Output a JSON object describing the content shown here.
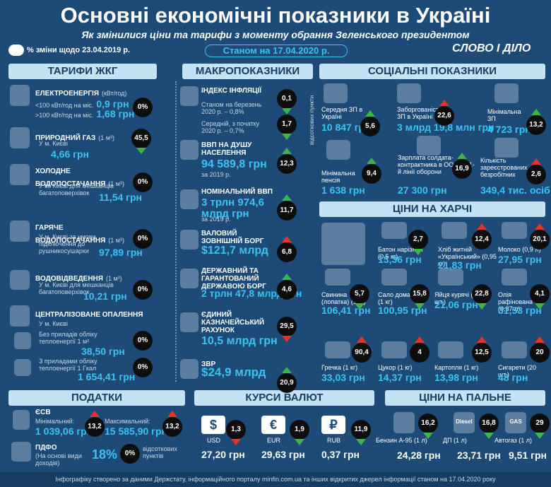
{
  "header": {
    "title": "Основні економічні показники в Україні",
    "subtitle": "Як змінилися ціни та тарифи з моменту обрання Зеленського президентом",
    "legend_note": "% зміни щодо 23.04.2019 р.",
    "date": "Станом на 17.04.2020 р.",
    "logo": "СЛОВО І ДІЛО"
  },
  "tariffs": {
    "title": "ТАРИФИ ЖКГ",
    "items": [
      {
        "name": "ЕЛЕКТРОЕНЕРГІЯ",
        "unit": "(кВт/год)",
        "rows": [
          {
            "label": "<100 кВт/год на міс.",
            "value": "0,9 грн"
          },
          {
            "label": ">100 кВт/год на міс.",
            "value": "1,68 грн"
          }
        ],
        "change": {
          "value": "0%"
        }
      },
      {
        "name": "ПРИРОДНИЙ ГАЗ",
        "unit": "(1 м³)",
        "note": "У м. Києві",
        "value": "4,66 грн",
        "change": {
          "value": "45,5",
          "dir": "down",
          "color": "#3db34a"
        }
      },
      {
        "name": "ХОЛОДНЕ ВОДОПОСТАЧАННЯ",
        "unit": "(1 м³)",
        "note": "У м. Києві для мешканців багатоповерхівок",
        "value": "11,54 грн",
        "change": {
          "value": "0%"
        }
      },
      {
        "name": "ГАРЯЧЕ ВОДОПОСТАЧАННЯ",
        "unit": "(1 м³)",
        "note": "У м. Києві за умови підключення до рушникосушарки",
        "value": "97,89 грн",
        "change": {
          "value": "0%"
        }
      },
      {
        "name": "ВОДОВІДВЕДЕННЯ",
        "unit": "(1 м³)",
        "note": "У м. Києві для мешканців багатоповерхівок",
        "value": "10,21 грн",
        "change": {
          "value": "0%"
        }
      },
      {
        "name": "ЦЕНТРАЛІЗОВАНЕ ОПАЛЕННЯ",
        "note": "У м. Києві",
        "rows": [
          {
            "label": "Без приладів обліку теплоенергії 1 м²",
            "value": "38,50 грн",
            "change": {
              "value": "0%"
            }
          },
          {
            "label": "З приладами обліку теплоенергії 1 Гкал",
            "value": "1 654,41 грн",
            "change": {
              "value": "0%"
            }
          }
        ]
      }
    ]
  },
  "macro": {
    "title": "МАКРОПОКАЗНИКИ",
    "side_note": "відсоткових пункти",
    "items": [
      {
        "name": "ІНДЕКС ІНФЛЯЦІЇ",
        "rows": [
          {
            "label": "Станом на березень 2020 р. – 0,8%",
            "change": {
              "value": "0,1",
              "dir": "down",
              "color": "#3db34a"
            }
          },
          {
            "label": "Середній, з початку 2020 р. – 0,7%",
            "change": {
              "value": "1,7",
              "dir": "down",
              "color": "#3db34a"
            }
          }
        ]
      },
      {
        "name": "ВВП НА ДУШУ НАСЕЛЕННЯ",
        "value": "94 589,8 грн",
        "note": "за 2019 р.",
        "change": {
          "value": "12,3",
          "dir": "up",
          "color": "#3db34a"
        }
      },
      {
        "name": "НОМІНАЛЬНИЙ ВВП",
        "value": "3 трлн 974,6 млрд грн",
        "note": "за 2019 р.",
        "change": {
          "value": "11,7",
          "dir": "up",
          "color": "#3db34a"
        }
      },
      {
        "name": "ВАЛОВИЙ ЗОВНІШНІЙ БОРГ",
        "value": "$121,7 млрд",
        "change": {
          "value": "6,8",
          "dir": "up",
          "color": "#e5332a"
        }
      },
      {
        "name": "ДЕРЖАВНИЙ ТА ГАРАНТОВАНИЙ ДЕРЖАВОЮ БОРГ",
        "value": "2 трлн 47,8 млрд грн",
        "change": {
          "value": "4,6",
          "dir": "up",
          "color": "#3db34a"
        }
      },
      {
        "name": "ЄДИНИЙ КАЗНАЧЕЙСЬКИЙ РАХУНОК",
        "value": "10,5 млрд грн",
        "change": {
          "value": "29,5",
          "dir": "down",
          "color": "#e5332a"
        }
      },
      {
        "name": "ЗВР",
        "value": "$24,9 млрд",
        "change": {
          "value": "20,9",
          "dir": "up",
          "color": "#3db34a"
        }
      }
    ]
  },
  "social": {
    "title": "СОЦІАЛЬНІ ПОКАЗНИКИ",
    "items": [
      {
        "name": "Середня ЗП в Україні",
        "value": "10 847 грн",
        "change": {
          "value": "5,6",
          "dir": "up",
          "color": "#3db34a"
        }
      },
      {
        "name": "Заборгованість із ЗП в Україні",
        "value": "3 млрд 19,8 млн грн",
        "change": {
          "value": "22,6",
          "dir": "up",
          "color": "#e5332a"
        }
      },
      {
        "name": "Мінімальна ЗП",
        "value": "4 723 грн",
        "change": {
          "value": "13,2",
          "dir": "up",
          "color": "#3db34a"
        }
      },
      {
        "name": "Мінімальна пенсія",
        "value": "1 638 грн",
        "change": {
          "value": "9,4",
          "dir": "up",
          "color": "#3db34a"
        }
      },
      {
        "name": "Зарплата солдата-контрактника в ООС на 1-й лінії оборони",
        "value": "27 300 грн",
        "change": {
          "value": "16,9",
          "dir": "up",
          "color": "#3db34a"
        }
      },
      {
        "name": "Кількість зареєстрованих безробітних",
        "value": "349,4 тис. осіб",
        "change": {
          "value": "2,6",
          "dir": "up",
          "color": "#e5332a"
        }
      }
    ]
  },
  "food": {
    "title": "ЦІНИ НА ХАРЧІ",
    "items": [
      {
        "name": "Батон нарізний (0,5 кг)",
        "value": "13,36 грн",
        "change": {
          "value": "2,7",
          "dir": "down",
          "color": "#3db34a"
        }
      },
      {
        "name": "Хліб житній «Український» (0,95 кг)",
        "value": "21,83 грн",
        "change": {
          "value": "12,4",
          "dir": "up",
          "color": "#e5332a"
        }
      },
      {
        "name": "Молоко (0,9 л)",
        "value": "27,95 грн",
        "change": {
          "value": "20,1",
          "dir": "up",
          "color": "#e5332a"
        }
      },
      {
        "name": "Свинина (лопатка) (1 кг)",
        "value": "106,41 грн",
        "change": {
          "value": "5,7",
          "dir": "down",
          "color": "#3db34a"
        }
      },
      {
        "name": "Сало домашнє (1 кг)",
        "value": "100,95 грн",
        "change": {
          "value": "15,8",
          "dir": "down",
          "color": "#3db34a"
        }
      },
      {
        "name": "Яйця курячі (10 шт.)",
        "value": "21,06 грн",
        "change": {
          "value": "22,8",
          "dir": "down",
          "color": "#3db34a"
        }
      },
      {
        "name": "Олія рафінована (0,87 л)",
        "value": "31,53 грн",
        "change": {
          "value": "4,1",
          "dir": "down",
          "color": "#3db34a"
        }
      },
      {
        "name": "Гречка (1 кг)",
        "value": "33,03 грн",
        "change": {
          "value": "90,4",
          "dir": "up",
          "color": "#e5332a"
        }
      },
      {
        "name": "Цукор (1 кг)",
        "value": "14,37 грн",
        "change": {
          "value": "4",
          "dir": "up",
          "color": "#e5332a"
        }
      },
      {
        "name": "Картопля (1 кг)",
        "value": "13,98 грн",
        "change": {
          "value": "12,5",
          "dir": "up",
          "color": "#e5332a"
        }
      },
      {
        "name": "Сигарети (20 шт.)",
        "value": "48 грн",
        "change": {
          "value": "20",
          "dir": "up",
          "color": "#e5332a"
        }
      }
    ]
  },
  "taxes": {
    "title": "ПОДАТКИ",
    "esv": {
      "name": "ЄСВ",
      "rows": [
        {
          "label": "Мінімальний:",
          "value": "1 039,06 грн",
          "change": {
            "value": "13,2",
            "dir": "up",
            "color": "#e5332a"
          }
        },
        {
          "label": "Максимальний:",
          "value": "15 585,90 грн",
          "change": {
            "value": "13,2",
            "dir": "up",
            "color": "#e5332a"
          }
        }
      ]
    },
    "pdfo": {
      "name": "ПДФО",
      "note": "(На основі види доходів)",
      "value": "18%",
      "change": {
        "value": "0%"
      },
      "change_note": "відсоткових пунктів"
    }
  },
  "currency": {
    "title": "КУРСИ ВАЛЮТ",
    "items": [
      {
        "icon": "$",
        "code": "USD",
        "value": "27,20 грн",
        "change": {
          "value": "1,3",
          "dir": "down",
          "color": "#e5332a"
        }
      },
      {
        "icon": "€",
        "code": "EUR",
        "value": "29,63 грн",
        "change": {
          "value": "1,9",
          "dir": "down",
          "color": "#3db34a"
        }
      },
      {
        "icon": "₽",
        "code": "RUB",
        "value": "0,37 грн",
        "change": {
          "value": "11,9",
          "dir": "down",
          "color": "#3db34a"
        }
      }
    ]
  },
  "fuel": {
    "title": "ЦІНИ НА ПАЛЬНЕ",
    "items": [
      {
        "name": "Бензин А-95 (1 л)",
        "value": "24,28 грн",
        "change": {
          "value": "16,2",
          "dir": "down",
          "color": "#3db34a"
        }
      },
      {
        "icon": "Diesel",
        "name": "ДП (1 л)",
        "value": "23,71 грн",
        "change": {
          "value": "16,8",
          "dir": "down",
          "color": "#3db34a"
        }
      },
      {
        "icon": "GAS",
        "name": "Автогаз (1 л)",
        "value": "9,51 грн",
        "change": {
          "value": "29",
          "dir": "down",
          "color": "#3db34a"
        }
      }
    ]
  },
  "footer": "Інфографіку створено за даними Держстату, інформаційного порталу minfin.com.ua та інших відкритих джерел інформації станом на 17.04.2020 року"
}
